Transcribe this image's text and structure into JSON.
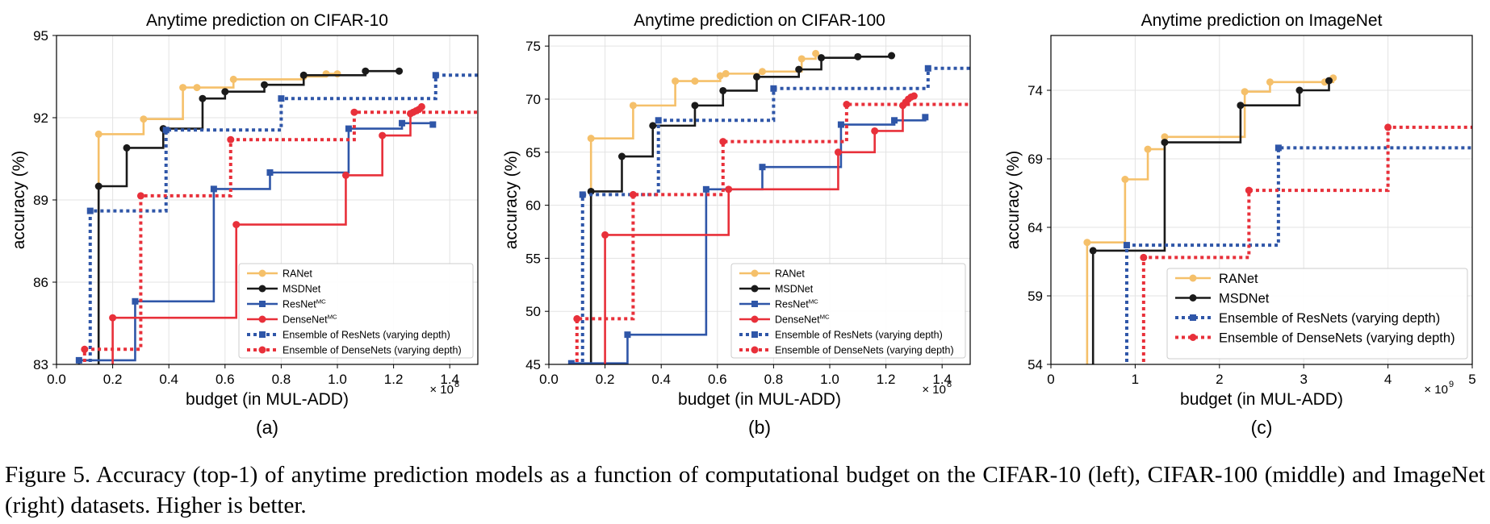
{
  "figure": {
    "caption": "Figure 5. Accuracy (top-1) of anytime prediction models as a function of computational budget on the CIFAR-10 (left), CIFAR-100 (middle) and ImageNet (right) datasets. Higher is better."
  },
  "styles": {
    "RANet": {
      "color": "#f5c06a",
      "dash": "solid",
      "marker": "circle"
    },
    "MSDNet": {
      "color": "#1a1a1a",
      "dash": "solid",
      "marker": "circle"
    },
    "ResNet": {
      "color": "#2f56a8",
      "dash": "solid",
      "marker": "square"
    },
    "DenseNet": {
      "color": "#e8303a",
      "dash": "solid",
      "marker": "circle"
    },
    "EnsRes": {
      "color": "#2f56a8",
      "dash": "dotted",
      "marker": "square"
    },
    "EnsDense": {
      "color": "#e8303a",
      "dash": "dotted",
      "marker": "circle"
    }
  },
  "chart_data": [
    {
      "type": "line",
      "title": "Anytime prediction on CIFAR-10",
      "xlabel": "budget (in MUL-ADD)",
      "ylabel": "accuracy (%)",
      "x_multiplier": "× 10",
      "x_exponent": "8",
      "panel_label": "(a)",
      "xlim": [
        0,
        1.5
      ],
      "ylim": [
        83,
        95
      ],
      "xticks": [
        0.0,
        0.2,
        0.4,
        0.6,
        0.8,
        1.0,
        1.2,
        1.4
      ],
      "xtick_labels": [
        "0.0",
        "0.2",
        "0.4",
        "0.6",
        "0.8",
        "1.0",
        "1.2",
        "1.4"
      ],
      "yticks": [
        83,
        86,
        89,
        92,
        95
      ],
      "ytick_labels": [
        "83",
        "86",
        "89",
        "92",
        "95"
      ],
      "grid": true,
      "legend_position": "bottom-right",
      "series": [
        {
          "name": "RANet",
          "key": "RANet",
          "name_sup": "",
          "x": [
            0.15,
            0.31,
            0.45,
            0.5,
            0.63,
            0.88,
            0.96,
            1.0
          ],
          "y": [
            91.4,
            91.95,
            93.1,
            93.1,
            93.4,
            93.5,
            93.6,
            93.6
          ]
        },
        {
          "name": "MSDNet",
          "key": "MSDNet",
          "name_sup": "",
          "x": [
            0.15,
            0.25,
            0.38,
            0.52,
            0.6,
            0.74,
            0.88,
            1.1,
            1.22
          ],
          "y": [
            89.5,
            90.9,
            91.6,
            92.7,
            92.95,
            93.2,
            93.55,
            93.7,
            93.7
          ]
        },
        {
          "name": "ResNet",
          "key": "ResNet",
          "name_sup": "MC",
          "x": [
            0.08,
            0.28,
            0.56,
            0.76,
            1.04,
            1.23,
            1.34
          ],
          "y": [
            83.15,
            85.3,
            89.4,
            90.0,
            91.6,
            91.8,
            91.75
          ]
        },
        {
          "name": "DenseNet",
          "key": "DenseNet",
          "name_sup": "MC",
          "x": [
            0.2,
            0.64,
            1.03,
            1.16,
            1.26,
            1.27,
            1.28,
            1.29,
            1.3
          ],
          "y": [
            84.7,
            88.1,
            89.9,
            91.35,
            92.15,
            92.2,
            92.25,
            92.3,
            92.4
          ]
        },
        {
          "name": "Ensemble of ResNets (varying depth)",
          "key": "EnsRes",
          "name_sup": "",
          "x": [
            0.12,
            0.39,
            0.8,
            1.35,
            1.5
          ],
          "y": [
            88.6,
            91.55,
            92.7,
            93.55,
            93.55
          ]
        },
        {
          "name": "Ensemble of DenseNets (varying depth)",
          "key": "EnsDense",
          "name_sup": "",
          "x": [
            0.1,
            0.3,
            0.62,
            1.06,
            1.5
          ],
          "y": [
            83.55,
            89.15,
            91.2,
            92.2,
            92.2
          ]
        }
      ]
    },
    {
      "type": "line",
      "title": "Anytime prediction on CIFAR-100",
      "xlabel": "budget (in MUL-ADD)",
      "ylabel": "accuracy (%)",
      "x_multiplier": "× 10",
      "x_exponent": "8",
      "panel_label": "(b)",
      "xlim": [
        0,
        1.5
      ],
      "ylim": [
        45,
        76
      ],
      "xticks": [
        0.0,
        0.2,
        0.4,
        0.6,
        0.8,
        1.0,
        1.2,
        1.4
      ],
      "xtick_labels": [
        "0.0",
        "0.2",
        "0.4",
        "0.6",
        "0.8",
        "1.0",
        "1.2",
        "1.4"
      ],
      "yticks": [
        45,
        50,
        55,
        60,
        65,
        70,
        75
      ],
      "ytick_labels": [
        "45",
        "50",
        "55",
        "60",
        "65",
        "70",
        "75"
      ],
      "grid": true,
      "legend_position": "bottom-right",
      "series": [
        {
          "name": "RANet",
          "key": "RANet",
          "name_sup": "",
          "x": [
            0.15,
            0.3,
            0.45,
            0.52,
            0.61,
            0.63,
            0.76,
            0.9,
            0.95
          ],
          "y": [
            66.3,
            69.4,
            71.7,
            71.7,
            72.2,
            72.4,
            72.6,
            73.8,
            74.3
          ]
        },
        {
          "name": "MSDNet",
          "key": "MSDNet",
          "name_sup": "",
          "x": [
            0.15,
            0.26,
            0.37,
            0.52,
            0.62,
            0.74,
            0.89,
            0.97,
            1.1,
            1.22
          ],
          "y": [
            61.3,
            64.6,
            67.5,
            69.4,
            70.8,
            72.1,
            72.8,
            73.9,
            74.0,
            74.1
          ]
        },
        {
          "name": "ResNet",
          "key": "ResNet",
          "name_sup": "MC",
          "x": [
            0.08,
            0.28,
            0.56,
            0.76,
            1.04,
            1.23,
            1.34
          ],
          "y": [
            45.1,
            47.8,
            61.5,
            63.6,
            67.6,
            68.0,
            68.3
          ]
        },
        {
          "name": "DenseNet",
          "key": "DenseNet",
          "name_sup": "MC",
          "x": [
            0.2,
            0.64,
            1.03,
            1.16,
            1.26,
            1.27,
            1.28,
            1.29,
            1.3
          ],
          "y": [
            57.2,
            61.5,
            65.0,
            67.0,
            69.4,
            69.7,
            70.0,
            70.2,
            70.3
          ]
        },
        {
          "name": "Ensemble of ResNets (varying depth)",
          "key": "EnsRes",
          "name_sup": "",
          "x": [
            0.12,
            0.39,
            0.8,
            1.35,
            1.5
          ],
          "y": [
            61.0,
            68.0,
            71.0,
            72.9,
            72.9
          ]
        },
        {
          "name": "Ensemble of DenseNets (varying depth)",
          "key": "EnsDense",
          "name_sup": "",
          "x": [
            0.1,
            0.3,
            0.62,
            1.06,
            1.5
          ],
          "y": [
            49.3,
            61.0,
            66.0,
            69.5,
            69.5
          ]
        }
      ]
    },
    {
      "type": "line",
      "title": "Anytime prediction on ImageNet",
      "xlabel": "budget (in MUL-ADD)",
      "ylabel": "accuracy (%)",
      "x_multiplier": "× 10",
      "x_exponent": "9",
      "panel_label": "(c)",
      "xlim": [
        0,
        5
      ],
      "ylim": [
        54,
        78
      ],
      "xticks": [
        0,
        1,
        2,
        3,
        4,
        5
      ],
      "xtick_labels": [
        "0",
        "1",
        "2",
        "3",
        "4",
        "5"
      ],
      "yticks": [
        54,
        59,
        64,
        69,
        74
      ],
      "ytick_labels": [
        "54",
        "59",
        "64",
        "69",
        "74"
      ],
      "grid": true,
      "legend_position": "bottom-right",
      "series": [
        {
          "name": "RANet",
          "key": "RANet",
          "name_sup": "",
          "x": [
            0.43,
            0.88,
            1.15,
            1.35,
            2.3,
            2.6,
            3.25,
            3.35
          ],
          "y": [
            62.9,
            67.5,
            69.7,
            70.6,
            73.9,
            74.6,
            74.6,
            74.9
          ]
        },
        {
          "name": "MSDNet",
          "key": "MSDNet",
          "name_sup": "",
          "x": [
            0.5,
            1.35,
            2.25,
            2.95,
            3.3
          ],
          "y": [
            62.3,
            70.2,
            72.9,
            74.0,
            74.7
          ]
        },
        {
          "name": "Ensemble of ResNets (varying depth)",
          "key": "EnsRes",
          "name_sup": "",
          "x": [
            0.9,
            2.7,
            5.0
          ],
          "y": [
            62.7,
            69.8,
            69.8
          ]
        },
        {
          "name": "Ensemble of DenseNets (varying depth)",
          "key": "EnsDense",
          "name_sup": "",
          "x": [
            1.1,
            2.35,
            4.0,
            5.0
          ],
          "y": [
            61.8,
            66.7,
            71.3,
            71.3
          ]
        }
      ]
    }
  ]
}
